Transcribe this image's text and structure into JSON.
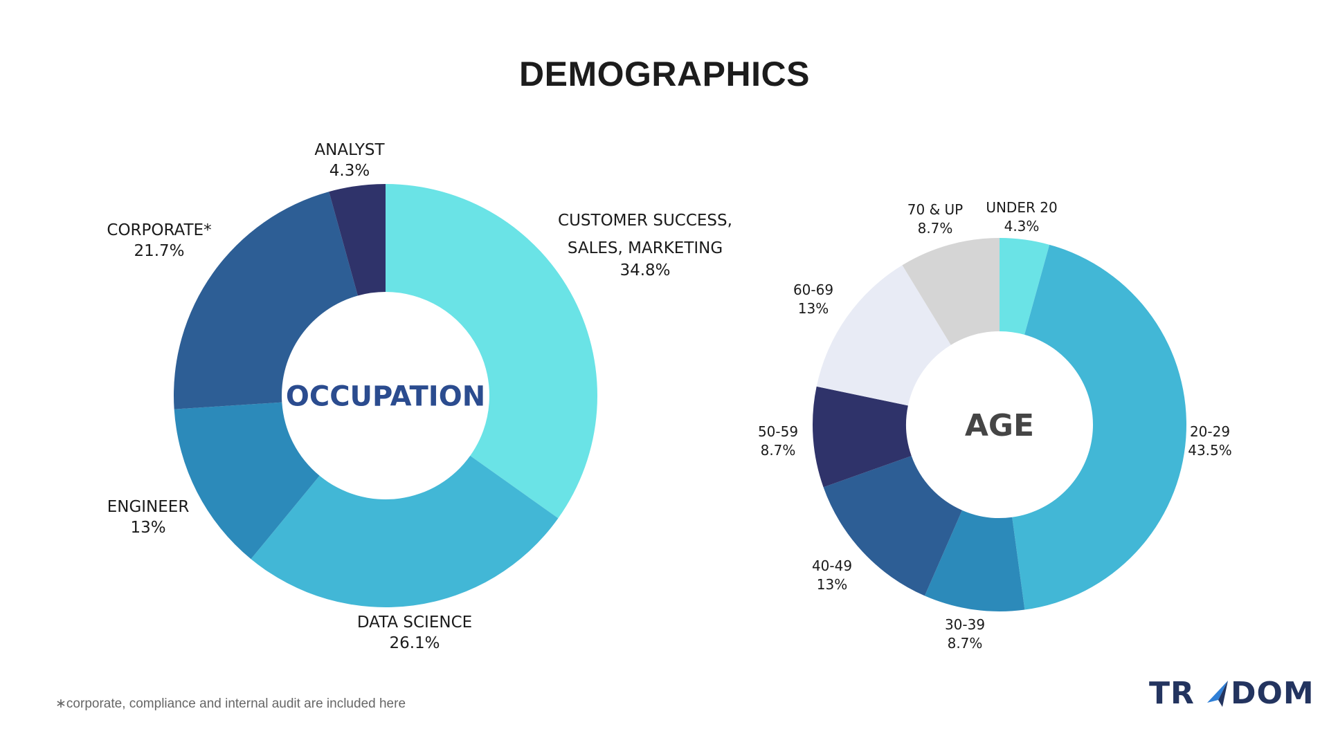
{
  "title": "DEMOGRAPHICS",
  "chart_data": [
    {
      "type": "pie",
      "center_label": "OCCUPATION",
      "center_label_color": "#2b4c8f",
      "slices": [
        {
          "label": "CUSTOMER SUCCESS,",
          "label2": "SALES, MARKETING",
          "value": 34.8,
          "value_label": "34.8%",
          "color": "#6ae3e6"
        },
        {
          "label": "DATA SCIENCE",
          "value": 26.1,
          "value_label": "26.1%",
          "color": "#42b7d6"
        },
        {
          "label": "ENGINEER",
          "value": 13,
          "value_label": "13%",
          "color": "#2c8aba"
        },
        {
          "label": "CORPORATE*",
          "value": 21.7,
          "value_label": "21.7%",
          "color": "#2d5e95"
        },
        {
          "label": "ANALYST",
          "value": 4.3,
          "value_label": "4.3%",
          "color": "#2f336a"
        }
      ]
    },
    {
      "type": "pie",
      "center_label": "AGE",
      "center_label_color": "#454545",
      "slices": [
        {
          "label": "UNDER 20",
          "value": 4.3,
          "value_label": "4.3%",
          "color": "#6ae3e6"
        },
        {
          "label": "20-29",
          "value": 43.5,
          "value_label": "43.5%",
          "color": "#42b7d6"
        },
        {
          "label": "30-39",
          "value": 8.7,
          "value_label": "8.7%",
          "color": "#2c8aba"
        },
        {
          "label": "40-49",
          "value": 13,
          "value_label": "13%",
          "color": "#2d5e95"
        },
        {
          "label": "50-59",
          "value": 8.7,
          "value_label": "8.7%",
          "color": "#2f336a"
        },
        {
          "label": "60-69",
          "value": 13,
          "value_label": "13%",
          "color": "#e8ebf5"
        },
        {
          "label": "70 & UP",
          "value": 8.7,
          "value_label": "8.7%",
          "color": "#d5d5d5"
        }
      ]
    }
  ],
  "footnote": "∗corporate, compliance and internal audit are included here",
  "logo": {
    "text_left": "TR",
    "text_right": "DOM",
    "icon": "paper-plane-icon",
    "color": "#23345f",
    "accent_color": "#2f7fd6"
  }
}
